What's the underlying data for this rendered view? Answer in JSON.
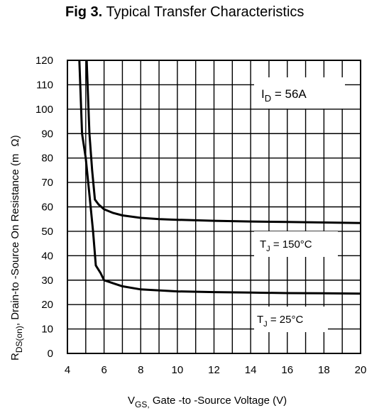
{
  "title": {
    "prefix": "Fig 3.",
    "text": "Typical Transfer Characteristics"
  },
  "chart_data": {
    "type": "line",
    "xlabel": {
      "main": "V",
      "sub": "GS,",
      "text": " Gate -to -Source Voltage  (V)"
    },
    "ylabel": {
      "main": "R",
      "sub": "DS(on)",
      "text": ",  Drain-to -Source On Resistance (m",
      "unit": "Ω)"
    },
    "xlim": [
      4,
      20
    ],
    "ylim": [
      0,
      120
    ],
    "x_ticks": [
      4,
      6,
      8,
      10,
      12,
      14,
      16,
      18,
      20
    ],
    "y_ticks": [
      0,
      10,
      20,
      30,
      40,
      50,
      60,
      70,
      80,
      90,
      100,
      110,
      120
    ],
    "grid": true,
    "annotations": [
      {
        "id": "id",
        "main": "I",
        "sub": "D",
        "text": " = 56A"
      },
      {
        "id": "tj150",
        "main": "T",
        "sub": "J",
        "text": " = 150°C"
      },
      {
        "id": "tj25",
        "main": "T",
        "sub": "J",
        "text": " = 25°C"
      }
    ],
    "series": [
      {
        "label_ref": "tj150",
        "x": [
          5.05,
          5.2,
          5.35,
          5.5,
          5.7,
          6.0,
          6.5,
          7,
          8,
          9,
          10,
          12,
          14,
          16,
          18,
          20
        ],
        "y": [
          120,
          90,
          75,
          63,
          61,
          59,
          57.5,
          56.5,
          55.5,
          55,
          54.7,
          54.3,
          54.0,
          53.8,
          53.6,
          53.4
        ]
      },
      {
        "label_ref": "tj25",
        "x": [
          4.65,
          4.8,
          5.0,
          5.2,
          5.4,
          5.55,
          5.8,
          6.0,
          6.5,
          7,
          8,
          10,
          12,
          14,
          16,
          18,
          20
        ],
        "y": [
          120,
          90,
          80,
          65,
          50,
          36,
          33,
          30,
          28.7,
          27.5,
          26.2,
          25.4,
          25.1,
          24.9,
          24.7,
          24.6,
          24.5
        ]
      }
    ]
  },
  "colors": {
    "line": "#000000",
    "grid": "#000000",
    "background": "#ffffff"
  }
}
